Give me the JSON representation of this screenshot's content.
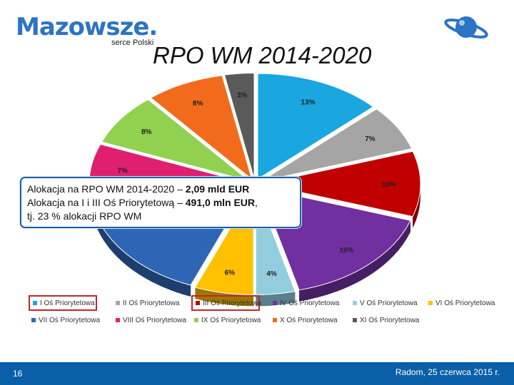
{
  "header": {
    "logo_text": "Mazowsze.",
    "logo_tagline": "serce Polski",
    "title": "RPO WM 2014-2020"
  },
  "callout": {
    "line1_text": "Alokacja na RPO WM 2014-2020 – ",
    "line1_value": "2,09 mld EUR",
    "line2_text": "Alokacja na I i III Oś Priorytetową – ",
    "line2_value": "491,0 mln EUR",
    "line2_tail": ",",
    "line3_text": "tj. 23 % alokacji RPO WM"
  },
  "footer": {
    "page_number": "16",
    "place_date": "Radom, 25 czerwca 2015 r."
  },
  "chart_data": {
    "type": "pie",
    "title": "RPO WM 2014-2020",
    "categories": [
      "I Oś Priorytetowa",
      "II Oś Priorytetowa",
      "III Oś Priorytetowa",
      "IV Oś Priorytetowa",
      "V Oś Priorytetowa",
      "VI Oś Priorytetowa",
      "VII Oś Priorytetowa",
      "VIII Oś Priorytetowa",
      "IX Oś Priorytetowa",
      "X Oś Priorytetowa",
      "XI Oś Priorytetowa"
    ],
    "values": [
      13,
      7,
      10,
      16,
      4,
      6,
      18,
      7,
      8,
      8,
      3
    ],
    "labels": [
      "13%",
      "7%",
      "10%",
      "16%",
      "4%",
      "6%",
      "",
      "7%",
      "8%",
      "8%",
      "3%"
    ],
    "colors": [
      "#1aa7e0",
      "#a5a5a5",
      "#c00000",
      "#7030a0",
      "#93cddd",
      "#ffc000",
      "#2e66b5",
      "#e01f6f",
      "#92d050",
      "#f26b1d",
      "#5a5a5a"
    ],
    "legend_highlighted": [
      "I Oś Priorytetowa",
      "III Oś Priorytetowa"
    ],
    "legend_position": "bottom"
  }
}
